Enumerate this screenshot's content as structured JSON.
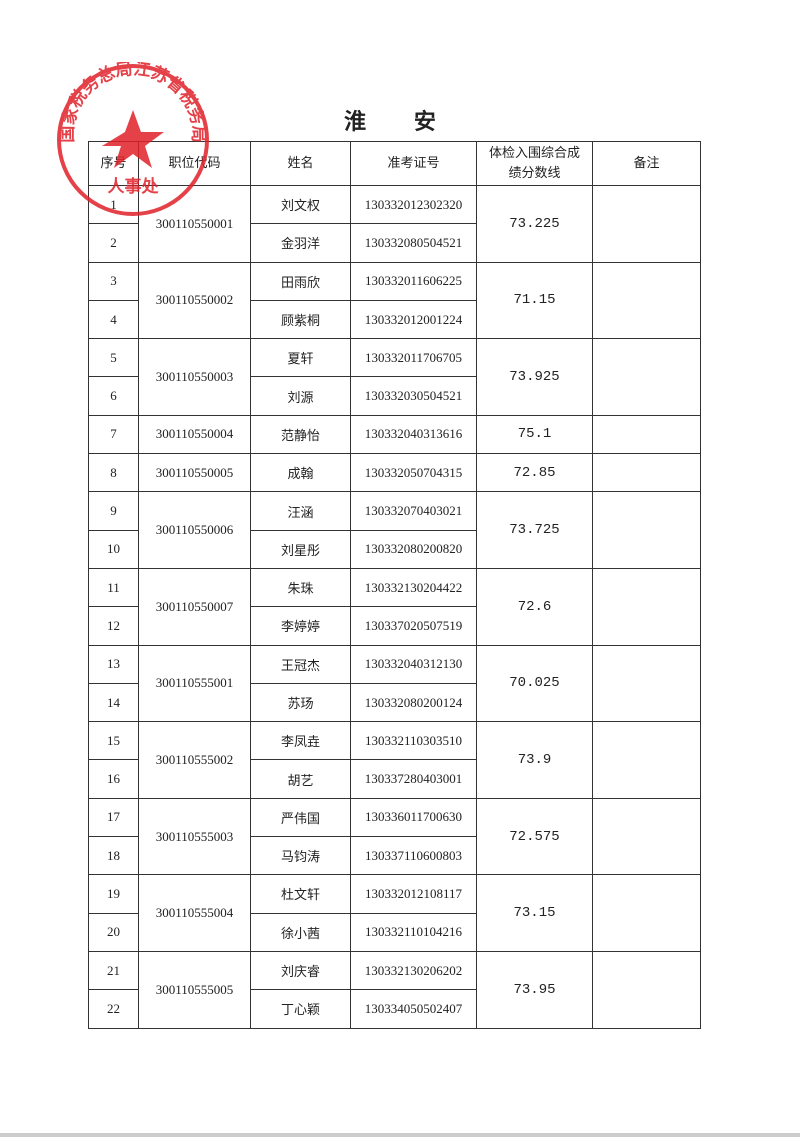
{
  "title": "淮 安",
  "headers": [
    "序号",
    "职位代码",
    "姓名",
    "准考证号",
    "体检入围综合成绩分数线",
    "备注"
  ],
  "seal": {
    "text_outer": "国家税务总局江苏省税务局",
    "text_inner": "人事处",
    "color": "#e0202a"
  },
  "groups": [
    {
      "code": "300110550001",
      "score": "73.225",
      "note": "",
      "people": [
        {
          "no": "1",
          "name": "刘文权",
          "id": "130332012302320"
        },
        {
          "no": "2",
          "name": "金羽洋",
          "id": "130332080504521"
        }
      ]
    },
    {
      "code": "300110550002",
      "score": "71.15",
      "note": "",
      "people": [
        {
          "no": "3",
          "name": "田雨欣",
          "id": "130332011606225"
        },
        {
          "no": "4",
          "name": "顾紫桐",
          "id": "130332012001224"
        }
      ]
    },
    {
      "code": "300110550003",
      "score": "73.925",
      "note": "",
      "people": [
        {
          "no": "5",
          "name": "夏轩",
          "id": "130332011706705"
        },
        {
          "no": "6",
          "name": "刘源",
          "id": "130332030504521"
        }
      ]
    },
    {
      "code": "300110550004",
      "score": "75.1",
      "note": "",
      "people": [
        {
          "no": "7",
          "name": "范静怡",
          "id": "130332040313616"
        }
      ]
    },
    {
      "code": "300110550005",
      "score": "72.85",
      "note": "",
      "people": [
        {
          "no": "8",
          "name": "成翰",
          "id": "130332050704315"
        }
      ]
    },
    {
      "code": "300110550006",
      "score": "73.725",
      "note": "",
      "people": [
        {
          "no": "9",
          "name": "汪涵",
          "id": "130332070403021"
        },
        {
          "no": "10",
          "name": "刘星彤",
          "id": "130332080200820"
        }
      ]
    },
    {
      "code": "300110550007",
      "score": "72.6",
      "note": "",
      "people": [
        {
          "no": "11",
          "name": "朱珠",
          "id": "130332130204422"
        },
        {
          "no": "12",
          "name": "李婷婷",
          "id": "130337020507519"
        }
      ]
    },
    {
      "code": "300110555001",
      "score": "70.025",
      "note": "",
      "people": [
        {
          "no": "13",
          "name": "王冠杰",
          "id": "130332040312130"
        },
        {
          "no": "14",
          "name": "苏玚",
          "id": "130332080200124"
        }
      ]
    },
    {
      "code": "300110555002",
      "score": "73.9",
      "note": "",
      "people": [
        {
          "no": "15",
          "name": "李凤垚",
          "id": "130332110303510"
        },
        {
          "no": "16",
          "name": "胡艺",
          "id": "130337280403001"
        }
      ]
    },
    {
      "code": "300110555003",
      "score": "72.575",
      "note": "",
      "people": [
        {
          "no": "17",
          "name": "严伟国",
          "id": "130336011700630"
        },
        {
          "no": "18",
          "name": "马钧涛",
          "id": "130337110600803"
        }
      ]
    },
    {
      "code": "300110555004",
      "score": "73.15",
      "note": "",
      "people": [
        {
          "no": "19",
          "name": "杜文轩",
          "id": "130332012108117"
        },
        {
          "no": "20",
          "name": "徐小茜",
          "id": "130332110104216"
        }
      ]
    },
    {
      "code": "300110555005",
      "score": "73.95",
      "note": "",
      "people": [
        {
          "no": "21",
          "name": "刘庆睿",
          "id": "130332130206202"
        },
        {
          "no": "22",
          "name": "丁心颖",
          "id": "130334050502407"
        }
      ]
    }
  ]
}
